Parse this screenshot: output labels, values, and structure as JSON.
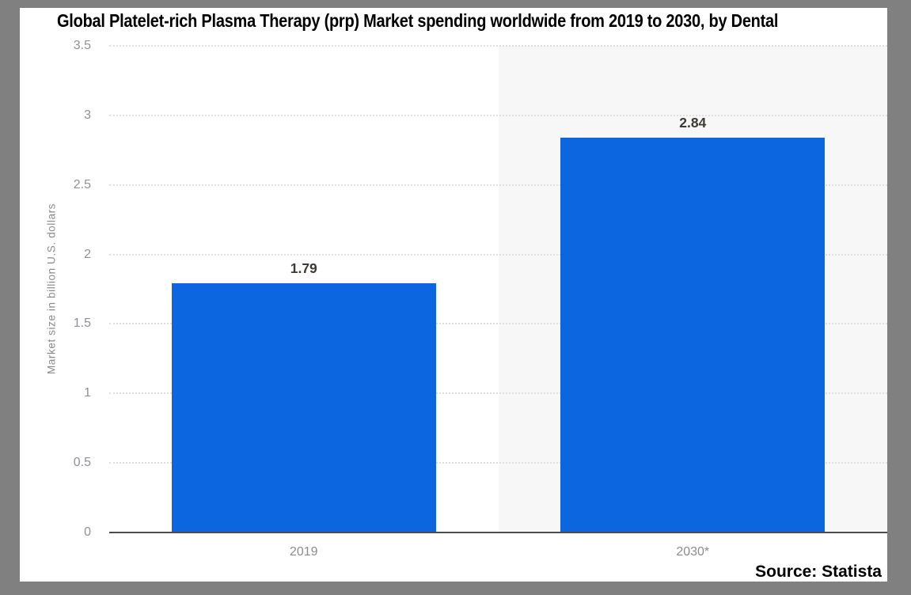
{
  "source": {
    "label": "Source: Statista"
  },
  "chart_data": {
    "type": "bar",
    "title": "Global Platelet-rich Plasma Therapy (prp) Market spending worldwide from 2019 to 2030, by Dental",
    "categories": [
      "2019",
      "2030*"
    ],
    "values": [
      1.79,
      2.84
    ],
    "value_labels": [
      "1.79",
      "2.84"
    ],
    "xlabel": "",
    "ylabel": "Market size in billion U.S. dollars",
    "ylim": [
      0,
      3.5
    ],
    "yticks": [
      0,
      0.5,
      1,
      1.5,
      2,
      2.5,
      3,
      3.5
    ],
    "ytick_labels": [
      "0",
      "0.5",
      "1",
      "1.5",
      "2",
      "2.5",
      "3",
      "3.5"
    ],
    "grid": true,
    "gridline_style": "dotted",
    "legend": false,
    "bar_color": "#0b66e0",
    "highlighted_category": "2030*",
    "highlight_bg": "#f7f7f7"
  }
}
